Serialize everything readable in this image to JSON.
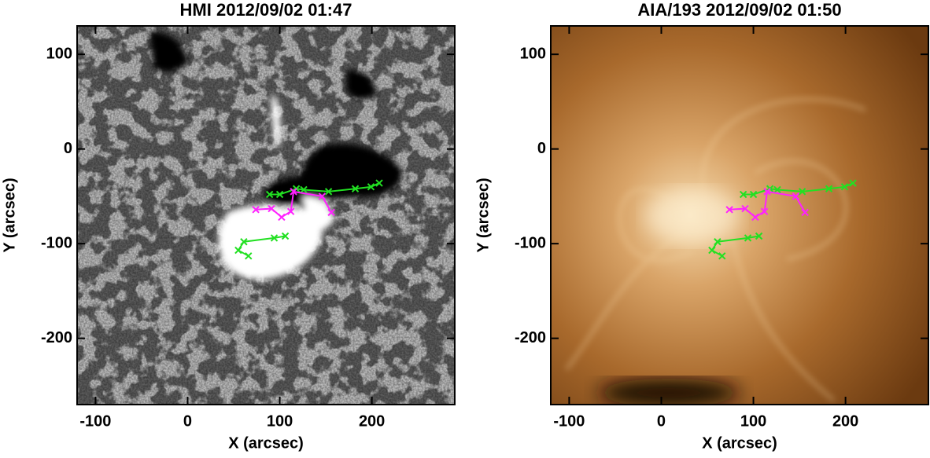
{
  "chart_data": [
    {
      "type": "line",
      "title": "HMI 2012/09/02 01:47",
      "xlabel": "X (arcsec)",
      "ylabel": "Y (arcsec)",
      "xlim": [
        -120,
        290
      ],
      "ylim": [
        -270,
        130
      ],
      "xticks": [
        -100,
        0,
        100,
        200
      ],
      "yticks": [
        -200,
        -100,
        0,
        100
      ],
      "marker": "x",
      "series": [
        {
          "color": "#22e022",
          "x": [
            89,
            100,
            118,
            126,
            153,
            182,
            199,
            208
          ],
          "values": [
            -48,
            -48,
            -42,
            -43,
            -45,
            -42,
            -40,
            -36
          ]
        },
        {
          "color": "#22e022",
          "x": [
            106,
            94,
            61,
            55,
            66
          ],
          "values": [
            -92,
            -94,
            -98,
            -107,
            -113
          ]
        },
        {
          "color": "#ff22ff",
          "x": [
            74,
            91,
            102,
            112,
            115,
            146,
            156
          ],
          "values": [
            -64,
            -63,
            -72,
            -66,
            -45,
            -50,
            -67
          ]
        }
      ]
    },
    {
      "type": "line",
      "title": "AIA/193 2012/09/02 01:50",
      "xlabel": "X (arcsec)",
      "ylabel": "Y (arcsec)",
      "xlim": [
        -120,
        290
      ],
      "ylim": [
        -270,
        130
      ],
      "xticks": [
        -100,
        0,
        100,
        200
      ],
      "yticks": [
        -200,
        -100,
        0,
        100
      ],
      "marker": "x",
      "series": [
        {
          "color": "#22e022",
          "x": [
            89,
            100,
            118,
            126,
            153,
            182,
            199,
            208
          ],
          "values": [
            -48,
            -48,
            -42,
            -43,
            -45,
            -42,
            -40,
            -36
          ]
        },
        {
          "color": "#22e022",
          "x": [
            106,
            94,
            61,
            55,
            66
          ],
          "values": [
            -92,
            -94,
            -98,
            -107,
            -113
          ]
        },
        {
          "color": "#ff22ff",
          "x": [
            74,
            91,
            102,
            112,
            115,
            146,
            156
          ],
          "values": [
            -64,
            -63,
            -72,
            -66,
            -45,
            -50,
            -67
          ]
        }
      ]
    }
  ]
}
